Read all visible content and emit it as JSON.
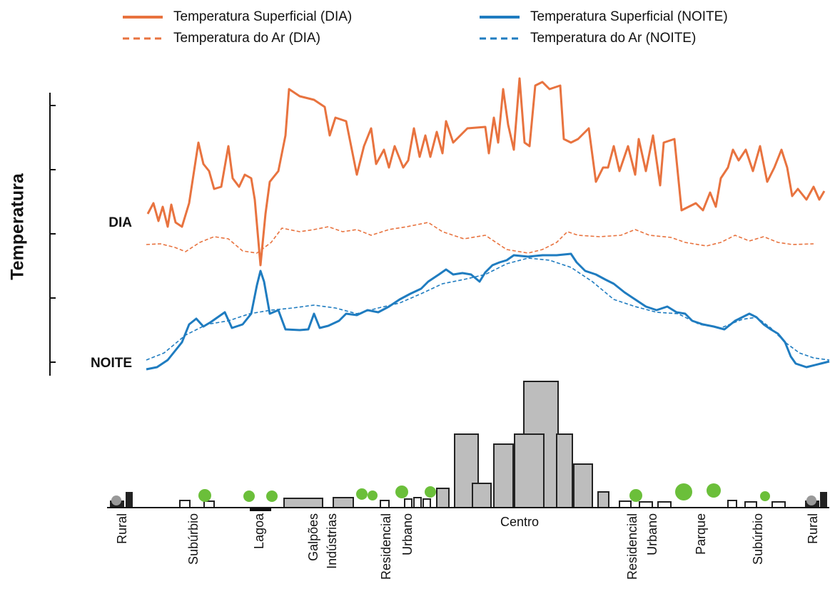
{
  "legend": [
    "Temperatura Superficial (DIA)",
    "Temperatura do Ar (DIA)",
    "Temperatura Superficial (NOITE)",
    "Temperatura do Ar (NOITE)"
  ],
  "y_axis": {
    "label": "Temperatura"
  },
  "annotations": {
    "day": "DIA",
    "night": "NOITE"
  },
  "zones": [
    "Rural",
    "Subúrbio",
    "Lagoa",
    "Galpões",
    "Indústrias",
    "Residencial",
    "Urbano",
    "Centro",
    "Residencial",
    "Urbano",
    "Parque",
    "Subúrbio",
    "Rural"
  ]
}
